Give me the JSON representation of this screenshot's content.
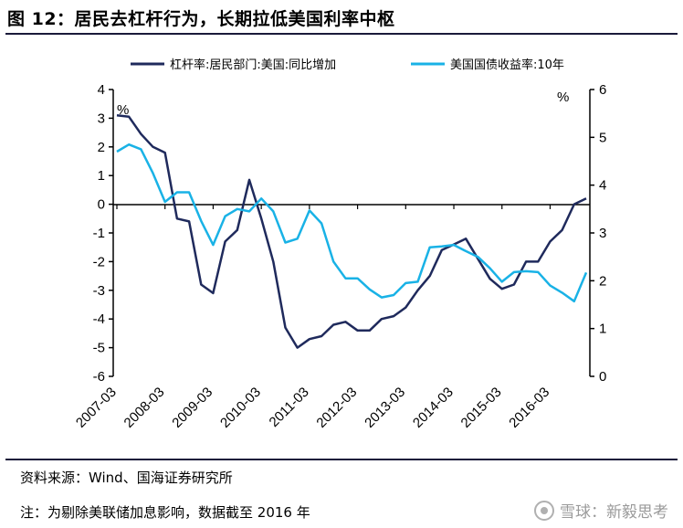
{
  "header": {
    "title": "图 12：居民去杠杆行为，长期拉低美国利率中枢"
  },
  "footer": {
    "source": "资料来源：Wind、国海证券研究所",
    "note": "注：为剔除美联储加息影响，数据截至 2016 年",
    "watermark": "雪球：新毅思考"
  },
  "colors": {
    "series1": "#1f2a5c",
    "series2": "#19b2e6",
    "axis": "#000000"
  },
  "chart_data": {
    "type": "line",
    "left_axis": {
      "min": -6,
      "max": 4,
      "step": 1,
      "unit": "%"
    },
    "right_axis": {
      "min": 0,
      "max": 6,
      "step": 1,
      "unit": "%"
    },
    "x_tick_labels": [
      "2007-03",
      "2008-03",
      "2009-03",
      "2010-03",
      "2011-03",
      "2012-03",
      "2013-03",
      "2014-03",
      "2015-03",
      "2016-03"
    ],
    "legend_position": "top",
    "series": [
      {
        "name": "杠杆率:居民部门:美国:同比增加",
        "axis": "left",
        "values": [
          3.1,
          3.05,
          2.45,
          2.0,
          1.8,
          -0.5,
          -0.6,
          -2.8,
          -3.1,
          -1.3,
          -0.9,
          0.85,
          -0.5,
          -2.0,
          -4.3,
          -5.0,
          -4.7,
          -4.6,
          -4.2,
          -4.1,
          -4.4,
          -4.4,
          -4.0,
          -3.9,
          -3.6,
          -3.0,
          -2.5,
          -1.6,
          -1.4,
          -1.2,
          -1.9,
          -2.6,
          -2.95,
          -2.8,
          -2.0,
          -2.0,
          -1.3,
          -0.9,
          0.0,
          0.2
        ]
      },
      {
        "name": "美国国债收益率:10年",
        "axis": "right",
        "values": [
          4.7,
          4.85,
          4.75,
          4.25,
          3.65,
          3.85,
          3.85,
          3.25,
          2.75,
          3.35,
          3.5,
          3.45,
          3.72,
          3.45,
          2.8,
          2.88,
          3.47,
          3.2,
          2.4,
          2.05,
          2.05,
          1.82,
          1.65,
          1.7,
          1.95,
          1.98,
          2.7,
          2.72,
          2.75,
          2.62,
          2.5,
          2.26,
          1.98,
          2.18,
          2.2,
          2.18,
          1.9,
          1.75,
          1.57,
          2.17
        ]
      }
    ]
  }
}
